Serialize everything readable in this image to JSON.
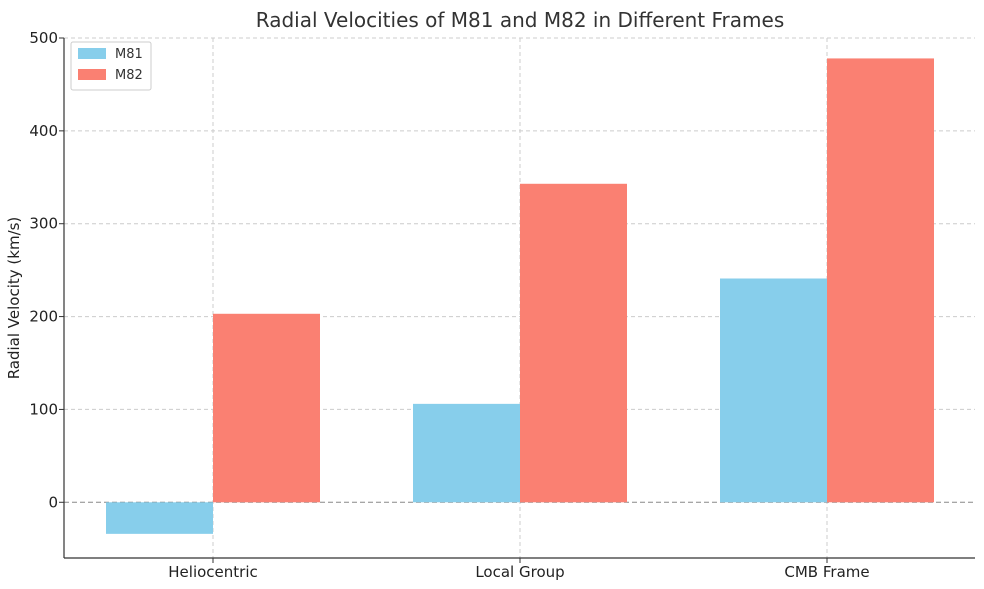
{
  "chart_data": {
    "type": "bar",
    "title": "Radial Velocities of M81 and M82 in Different Frames",
    "xlabel": "",
    "ylabel": "Radial Velocity (km/s)",
    "categories": [
      "Heliocentric",
      "Local Group",
      "CMB Frame"
    ],
    "series": [
      {
        "name": "M81",
        "color": "#87CEEB",
        "values": [
          -34,
          106,
          241
        ]
      },
      {
        "name": "M82",
        "color": "#FA8072",
        "values": [
          203,
          343,
          478
        ]
      }
    ],
    "ylim": [
      -60,
      500
    ],
    "yticks": [
      0,
      100,
      200,
      300,
      400,
      500
    ],
    "grid": true,
    "legend": "top-left",
    "zero_line": true
  }
}
